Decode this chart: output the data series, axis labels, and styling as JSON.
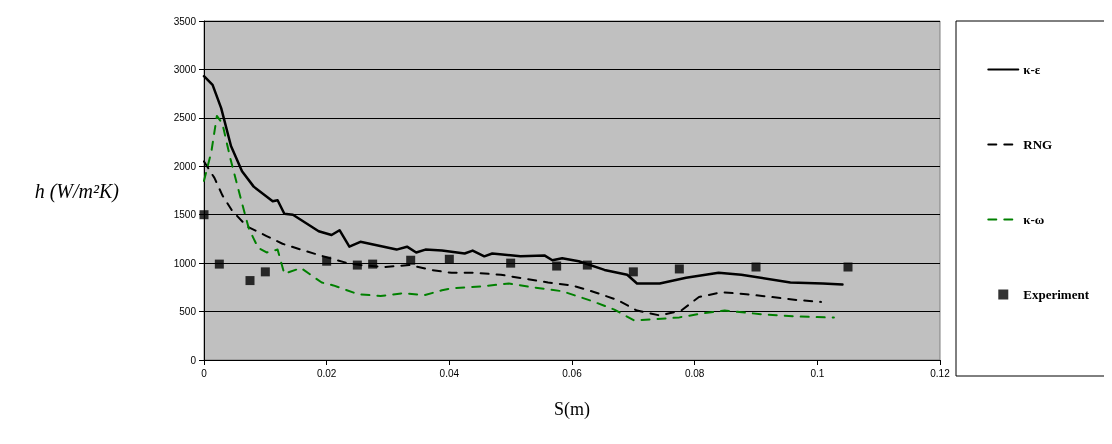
{
  "chart_data": {
    "type": "line",
    "xlabel": "S(m)",
    "ylabel": "h (W/m²K)",
    "xlim": [
      0,
      0.12
    ],
    "xticks": [
      0,
      0.02,
      0.04,
      0.06,
      0.08,
      0.1,
      0.12
    ],
    "ylim": [
      0,
      3500
    ],
    "yticks": [
      0,
      500,
      1000,
      1500,
      2000,
      2500,
      3000,
      3500
    ],
    "grid": "y",
    "legend": "right",
    "marker": "none",
    "series": [
      {
        "name": "κ-ε",
        "color": "#000000",
        "line_style": "solid",
        "x": [
          0,
          0.0014,
          0.0028,
          0.0044,
          0.0062,
          0.0081,
          0.0112,
          0.012,
          0.0131,
          0.0145,
          0.0187,
          0.0208,
          0.0221,
          0.0237,
          0.0255,
          0.0314,
          0.0331,
          0.0346,
          0.0361,
          0.0388,
          0.0425,
          0.0438,
          0.0457,
          0.047,
          0.0516,
          0.0555,
          0.0568,
          0.0584,
          0.0611,
          0.0653,
          0.069,
          0.0706,
          0.0743,
          0.0786,
          0.0839,
          0.0876,
          0.0956,
          0.1009,
          0.1041
        ],
        "values": [
          2930,
          2840,
          2600,
          2210,
          1950,
          1790,
          1640,
          1650,
          1510,
          1500,
          1330,
          1290,
          1340,
          1170,
          1220,
          1140,
          1170,
          1110,
          1140,
          1130,
          1100,
          1130,
          1070,
          1100,
          1070,
          1080,
          1030,
          1050,
          1020,
          930,
          880,
          790,
          790,
          850,
          900,
          880,
          800,
          790,
          780
        ]
      },
      {
        "name": "RNG",
        "color": "#000000",
        "line_style": "dashed",
        "x": [
          0,
          0.0017,
          0.003,
          0.0046,
          0.007,
          0.0102,
          0.0128,
          0.0163,
          0.02,
          0.0234,
          0.0255,
          0.0293,
          0.0335,
          0.037,
          0.0404,
          0.0443,
          0.0484,
          0.0523,
          0.0561,
          0.06,
          0.0637,
          0.0674,
          0.0706,
          0.0743,
          0.0778,
          0.0807,
          0.0844,
          0.0884,
          0.0926,
          0.0966,
          0.1006
        ],
        "values": [
          2050,
          1880,
          1700,
          1540,
          1380,
          1280,
          1200,
          1130,
          1060,
          1000,
          980,
          960,
          980,
          930,
          900,
          900,
          880,
          840,
          800,
          770,
          700,
          620,
          510,
          460,
          510,
          650,
          700,
          680,
          650,
          620,
          600
        ]
      },
      {
        "name": "κ-ω",
        "color": "#008000",
        "line_style": "dashed",
        "x": [
          0,
          0.0012,
          0.0021,
          0.003,
          0.0043,
          0.0059,
          0.0073,
          0.0088,
          0.0102,
          0.012,
          0.0131,
          0.0158,
          0.0192,
          0.0211,
          0.0251,
          0.0288,
          0.0325,
          0.036,
          0.0388,
          0.0404,
          0.0452,
          0.0497,
          0.0537,
          0.0584,
          0.0632,
          0.0669,
          0.0701,
          0.0732,
          0.0775,
          0.0812,
          0.0849,
          0.0913,
          0.0963,
          0.1014,
          0.1027
        ],
        "values": [
          1850,
          2150,
          2520,
          2440,
          2080,
          1690,
          1360,
          1160,
          1110,
          1140,
          890,
          950,
          800,
          770,
          680,
          660,
          690,
          670,
          720,
          740,
          760,
          790,
          750,
          710,
          610,
          520,
          410,
          420,
          440,
          480,
          510,
          470,
          450,
          440,
          440
        ]
      },
      {
        "name": "Experiment",
        "type": "scatter",
        "color": "#000000",
        "marker": "square",
        "x": [
          0,
          0.0025,
          0.0075,
          0.01,
          0.02,
          0.025,
          0.0275,
          0.0337,
          0.04,
          0.05,
          0.0575,
          0.0625,
          0.07,
          0.0775,
          0.09,
          0.105
        ],
        "values": [
          1500,
          990,
          820,
          910,
          1020,
          980,
          990,
          1030,
          1040,
          1000,
          970,
          980,
          910,
          940,
          960,
          960
        ]
      }
    ]
  }
}
